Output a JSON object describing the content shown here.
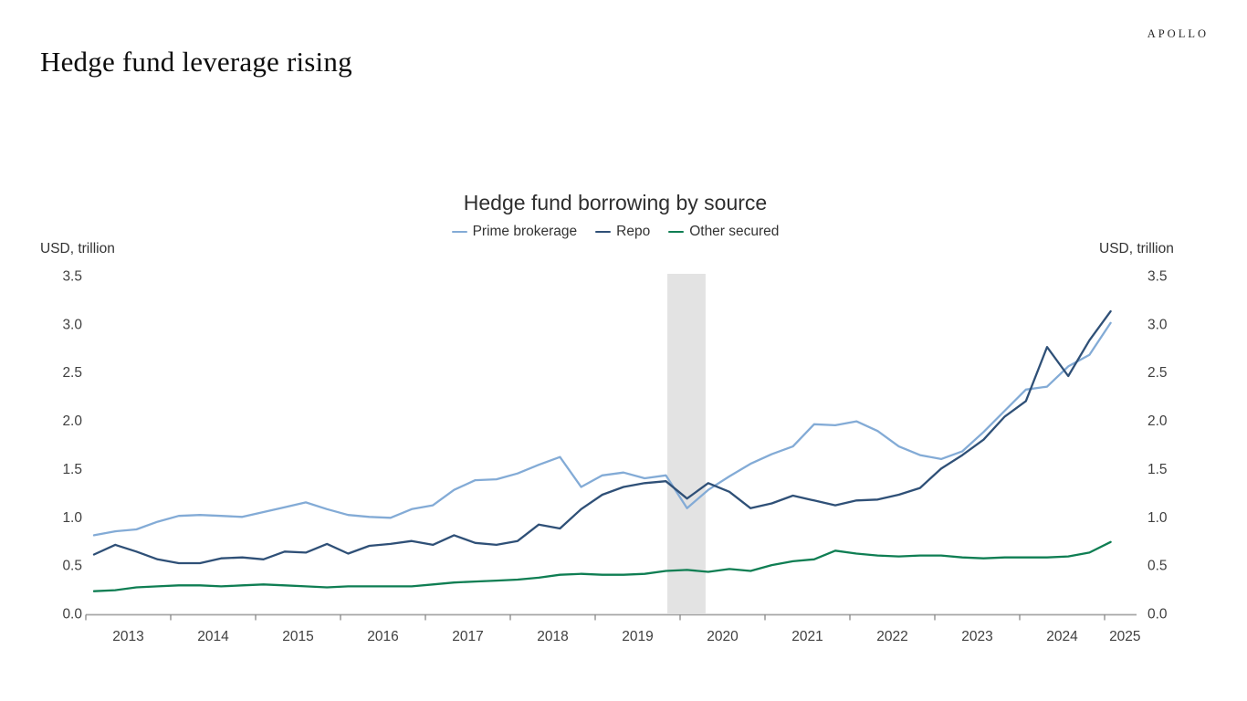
{
  "header": {
    "page_title": "Hedge fund leverage rising",
    "logo_text": "APOLLO"
  },
  "chart_data": {
    "type": "line",
    "title": "Hedge fund borrowing by source",
    "ylabel_left": "USD, trillion",
    "ylabel_right": "USD, trillion",
    "ylim": [
      0,
      3.5
    ],
    "y_tick_labels": [
      "0.0",
      "0.5",
      "1.0",
      "1.5",
      "2.0",
      "2.5",
      "3.0",
      "3.5"
    ],
    "x_tick_labels": [
      "2013",
      "2014",
      "2015",
      "2016",
      "2017",
      "2018",
      "2019",
      "2020",
      "2021",
      "2022",
      "2023",
      "2024",
      "2025"
    ],
    "frequency": "quarterly",
    "x_start_period": "2013Q1",
    "x_end_period": "2025Q1",
    "grid": false,
    "legend_position": "top",
    "recession_band": {
      "from_year": 2019.85,
      "to_year": 2020.3,
      "color": "#e3e3e3"
    },
    "axis_color": "#a6a6a6",
    "tick_color": "#7f7f7f",
    "label_color": "#404040",
    "series": [
      {
        "name": "Prime brokerage",
        "color": "#83ABD6",
        "values": [
          0.81,
          0.85,
          0.87,
          0.95,
          1.01,
          1.02,
          1.01,
          1.0,
          1.05,
          1.1,
          1.15,
          1.08,
          1.02,
          1.0,
          0.99,
          1.08,
          1.12,
          1.28,
          1.38,
          1.39,
          1.45,
          1.54,
          1.62,
          1.31,
          1.43,
          1.46,
          1.4,
          1.43,
          1.09,
          1.28,
          1.42,
          1.55,
          1.65,
          1.73,
          1.96,
          1.95,
          1.99,
          1.89,
          1.73,
          1.64,
          1.6,
          1.68,
          1.88,
          2.1,
          2.32,
          2.35,
          2.56,
          2.68,
          3.01
        ]
      },
      {
        "name": "Repo",
        "color": "#2F5077",
        "values": [
          0.61,
          0.71,
          0.64,
          0.56,
          0.52,
          0.52,
          0.57,
          0.58,
          0.56,
          0.64,
          0.63,
          0.72,
          0.62,
          0.7,
          0.72,
          0.75,
          0.71,
          0.81,
          0.73,
          0.71,
          0.75,
          0.92,
          0.88,
          1.08,
          1.23,
          1.31,
          1.35,
          1.37,
          1.19,
          1.35,
          1.26,
          1.09,
          1.14,
          1.22,
          1.17,
          1.12,
          1.17,
          1.18,
          1.23,
          1.3,
          1.5,
          1.64,
          1.8,
          2.04,
          2.2,
          2.76,
          2.46,
          2.83,
          3.13
        ]
      },
      {
        "name": "Other secured",
        "color": "#0F7E53",
        "values": [
          0.23,
          0.24,
          0.27,
          0.28,
          0.29,
          0.29,
          0.28,
          0.29,
          0.3,
          0.29,
          0.28,
          0.27,
          0.28,
          0.28,
          0.28,
          0.28,
          0.3,
          0.32,
          0.33,
          0.34,
          0.35,
          0.37,
          0.4,
          0.41,
          0.4,
          0.4,
          0.41,
          0.44,
          0.45,
          0.43,
          0.46,
          0.44,
          0.5,
          0.54,
          0.56,
          0.65,
          0.62,
          0.6,
          0.59,
          0.6,
          0.6,
          0.58,
          0.57,
          0.58,
          0.58,
          0.58,
          0.59,
          0.63,
          0.74
        ]
      }
    ]
  }
}
